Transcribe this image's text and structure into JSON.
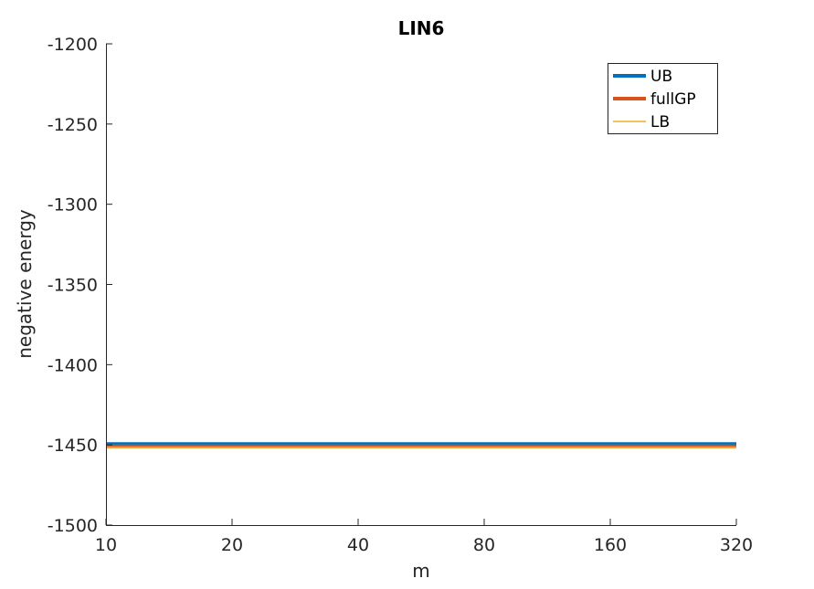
{
  "chart_data": {
    "type": "line",
    "title": "LIN6",
    "xlabel": "m",
    "ylabel": "negative energy",
    "x_tick_labels": [
      "10",
      "20",
      "40",
      "80",
      "160",
      "320"
    ],
    "x": [
      10,
      20,
      40,
      80,
      160,
      320
    ],
    "x_scale": "log2",
    "ylim": [
      -1500,
      -1200
    ],
    "y_ticks": [
      -1200,
      -1250,
      -1300,
      -1350,
      -1400,
      -1450,
      -1500
    ],
    "y_tick_labels": [
      "-1200",
      "-1250",
      "-1300",
      "-1350",
      "-1400",
      "-1450",
      "-1500"
    ],
    "grid": false,
    "legend_position": "top-right",
    "series": [
      {
        "name": "UB",
        "color": "#0072BD",
        "values": [
          -1449.5,
          -1449.5,
          -1449.5,
          -1449.5,
          -1449.5,
          -1449.5
        ]
      },
      {
        "name": "fullGP",
        "color": "#D95319",
        "values": [
          -1451,
          -1451,
          -1451,
          -1451,
          -1451,
          -1451
        ]
      },
      {
        "name": "LB",
        "color": "#EDB120",
        "values": [
          -1451.5,
          -1451.5,
          -1451.5,
          -1451.5,
          -1451.5,
          -1451.5
        ]
      }
    ]
  }
}
